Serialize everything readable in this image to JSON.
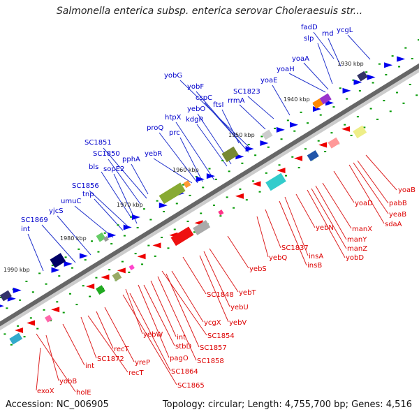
{
  "title": "Salmonella enterica subsp. enterica serovar Choleraesuis str...",
  "footer": {
    "accession": "Accession: NC_006905",
    "stats": "Topology: circular; Length: 4,755,700 bp; Genes: 4,516"
  },
  "colors": {
    "top_labels": "#0000cc",
    "bottom_labels": "#dd0000",
    "forward_feature": "#0000ee",
    "reverse_feature": "#ee0000",
    "backbone": "#666666",
    "tick": "#009900"
  },
  "kbp_ticks": [
    "1930 kbp",
    "1940 kbp",
    "1950 kbp",
    "1960 kbp",
    "1970 kbp",
    "1980 kbp",
    "1990 kbp"
  ],
  "top_labels": [
    "fadD",
    "rnd",
    "ycgL",
    "slp",
    "yoaA",
    "yoaH",
    "yoaE",
    "SC1823",
    "rrmA",
    "yobG",
    "yobF",
    "cspC",
    "ftsI",
    "yebO",
    "kdgR",
    "htpX",
    "prc",
    "proQ",
    "SC1851",
    "SC1850",
    "pphA",
    "yebR",
    "bls",
    "sopE2",
    "SC1856",
    "tnp",
    "umuC",
    "yjcS",
    "SC1869",
    "int"
  ],
  "bottom_labels": [
    "yoaB",
    "pabB",
    "yeaB",
    "sdaA",
    "yoaD",
    "manX",
    "manY",
    "manZ",
    "yobD",
    "yebN",
    "insA",
    "insB",
    "SC1837",
    "yebQ",
    "yebS",
    "yebT",
    "yebU",
    "yebV",
    "SC1848",
    "ycgX",
    "SC1854",
    "SC1857",
    "SC1858",
    "int",
    "stbD",
    "yebW",
    "pagO",
    "SC1864",
    "SC1865",
    "yreP",
    "recT",
    "recT",
    "SC1872",
    "int",
    "exoX",
    "yobB",
    "holE"
  ]
}
